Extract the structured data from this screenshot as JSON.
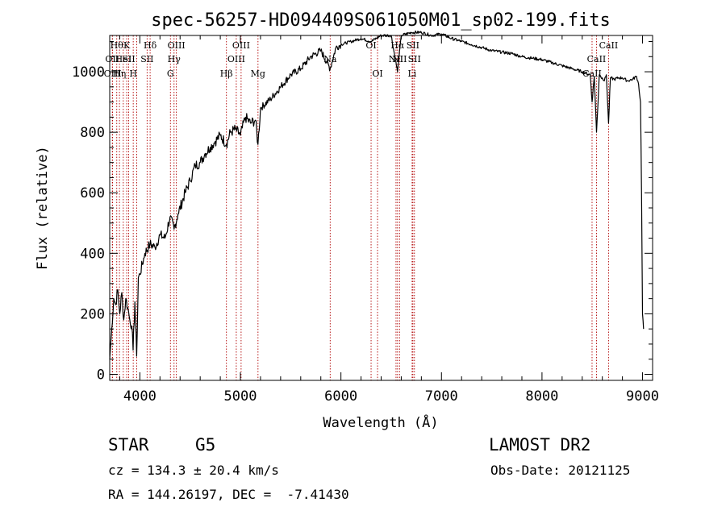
{
  "chart_data": {
    "type": "line",
    "title": "spec-56257-HD094409S061050M01_sp02-199.fits",
    "xlabel": "Wavelength (Å)",
    "ylabel": "Flux (relative)",
    "xlim": [
      3700,
      9100
    ],
    "ylim": [
      -20,
      1120
    ],
    "xticks": [
      4000,
      5000,
      6000,
      7000,
      8000,
      9000
    ],
    "yticks": [
      0,
      200,
      400,
      600,
      800,
      1000
    ],
    "series": [
      {
        "color": "#000000",
        "x": [
          3700,
          3720,
          3740,
          3760,
          3780,
          3800,
          3820,
          3840,
          3860,
          3880,
          3900,
          3920,
          3933,
          3950,
          3968,
          3985,
          4000,
          4050,
          4100,
          4150,
          4200,
          4250,
          4300,
          4340,
          4380,
          4450,
          4500,
          4550,
          4600,
          4650,
          4700,
          4750,
          4800,
          4861,
          4900,
          4950,
          5000,
          5050,
          5100,
          5150,
          5175,
          5200,
          5300,
          5400,
          5500,
          5600,
          5700,
          5800,
          5893,
          5950,
          6000,
          6100,
          6200,
          6300,
          6400,
          6500,
          6563,
          6600,
          6700,
          6800,
          6900,
          7000,
          7100,
          7200,
          7300,
          7400,
          7500,
          7600,
          7700,
          7800,
          7900,
          8000,
          8100,
          8200,
          8300,
          8400,
          8480,
          8498,
          8520,
          8542,
          8570,
          8600,
          8620,
          8640,
          8662,
          8680,
          8720,
          8760,
          8800,
          8850,
          8900,
          8940,
          8960,
          8980,
          8990,
          9000,
          9010
        ],
        "y": [
          50,
          150,
          250,
          230,
          280,
          200,
          270,
          180,
          250,
          220,
          180,
          160,
          80,
          240,
          60,
          320,
          330,
          400,
          430,
          420,
          460,
          450,
          520,
          480,
          530,
          600,
          640,
          690,
          700,
          730,
          750,
          770,
          790,
          760,
          800,
          810,
          790,
          850,
          830,
          840,
          760,
          880,
          910,
          950,
          990,
          1010,
          1050,
          1070,
          1010,
          1080,
          1090,
          1100,
          1110,
          1100,
          1120,
          1120,
          1000,
          1120,
          1130,
          1130,
          1120,
          1125,
          1110,
          1100,
          1090,
          1080,
          1070,
          1065,
          1060,
          1050,
          1045,
          1040,
          1030,
          1020,
          1010,
          1000,
          990,
          900,
          985,
          800,
          990,
          980,
          970,
          990,
          830,
          980,
          975,
          980,
          980,
          970,
          975,
          985,
          960,
          900,
          600,
          200,
          150
        ]
      }
    ],
    "lines": [
      {
        "x": 3726,
        "label": "OII",
        "row": 2
      },
      {
        "x": 3729,
        "label": "OIII",
        "row": 3
      },
      {
        "x": 3770,
        "label": "Hθ",
        "row": 1
      },
      {
        "x": 3797,
        "label": "Hη",
        "row": 3
      },
      {
        "x": 3835,
        "label": "HeI",
        "row": 2
      },
      {
        "x": 3869,
        "label": "K",
        "row": 1
      },
      {
        "x": 3889,
        "label": "SII",
        "row": 2
      },
      {
        "x": 3934,
        "label": "H",
        "row": 3
      },
      {
        "x": 3969,
        "label": "",
        "row": 0
      },
      {
        "x": 4072,
        "label": "SII",
        "row": 2
      },
      {
        "x": 4102,
        "label": "Hδ",
        "row": 1
      },
      {
        "x": 4304,
        "label": "G",
        "row": 3
      },
      {
        "x": 4340,
        "label": "Hγ",
        "row": 2
      },
      {
        "x": 4363,
        "label": "OIII",
        "row": 1
      },
      {
        "x": 4861,
        "label": "Hβ",
        "row": 3
      },
      {
        "x": 4959,
        "label": "OIII",
        "row": 2
      },
      {
        "x": 5007,
        "label": "OIII",
        "row": 1
      },
      {
        "x": 5175,
        "label": "Mg",
        "row": 3
      },
      {
        "x": 5893,
        "label": "Na",
        "row": 2
      },
      {
        "x": 6300,
        "label": "OI",
        "row": 1
      },
      {
        "x": 6364,
        "label": "OI",
        "row": 3
      },
      {
        "x": 6548,
        "label": "NII",
        "row": 2
      },
      {
        "x": 6563,
        "label": "Hα",
        "row": 1
      },
      {
        "x": 6583,
        "label": "NII",
        "row": 2
      },
      {
        "x": 6708,
        "label": "Li",
        "row": 3
      },
      {
        "x": 6716,
        "label": "SII",
        "row": 1
      },
      {
        "x": 6731,
        "label": "SII",
        "row": 2
      },
      {
        "x": 8498,
        "label": "CaII",
        "row": 3
      },
      {
        "x": 8542,
        "label": "CaII",
        "row": 2
      },
      {
        "x": 8662,
        "label": "CaII",
        "row": 1
      }
    ]
  },
  "info": {
    "object_type": "STAR",
    "subclass": "G5",
    "survey": "LAMOST DR2",
    "redshift": "cz = 134.3 ± 20.4 km/s",
    "obs_date": "Obs-Date: 20121125",
    "coords": "RA = 144.26197, DEC =  -7.41430"
  }
}
